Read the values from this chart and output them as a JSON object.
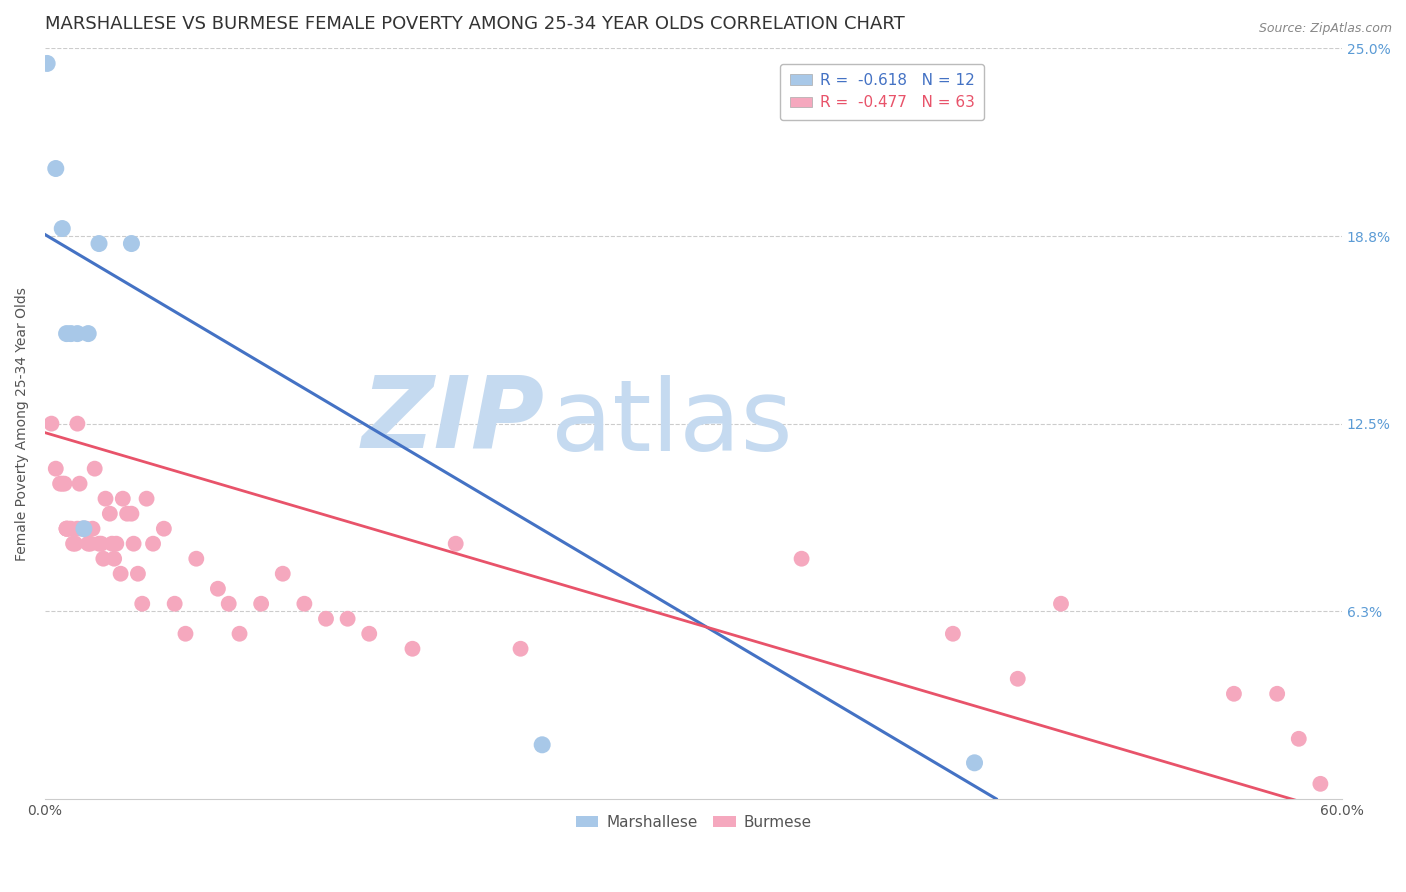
{
  "title": "MARSHALLESE VS BURMESE FEMALE POVERTY AMONG 25-34 YEAR OLDS CORRELATION CHART",
  "source_text": "Source: ZipAtlas.com",
  "ylabel": "Female Poverty Among 25-34 Year Olds",
  "xlim": [
    0.0,
    0.6
  ],
  "ylim": [
    0.0,
    0.25
  ],
  "ytick_values": [
    0.0,
    0.0625,
    0.125,
    0.1875,
    0.25
  ],
  "xtick_values": [
    0.0,
    0.1,
    0.2,
    0.3,
    0.4,
    0.5,
    0.6
  ],
  "xtick_labels": [
    "0.0%",
    "",
    "",
    "",
    "",
    "",
    "60.0%"
  ],
  "right_ytick_labels": [
    "6.3%",
    "12.5%",
    "18.8%",
    "25.0%"
  ],
  "right_ytick_values": [
    0.0625,
    0.125,
    0.1875,
    0.25
  ],
  "marshallese_x": [
    0.001,
    0.005,
    0.008,
    0.01,
    0.012,
    0.015,
    0.018,
    0.02,
    0.025,
    0.04,
    0.23,
    0.43
  ],
  "marshallese_y": [
    0.245,
    0.21,
    0.19,
    0.155,
    0.155,
    0.155,
    0.09,
    0.155,
    0.185,
    0.185,
    0.018,
    0.012
  ],
  "burmese_x": [
    0.003,
    0.005,
    0.007,
    0.008,
    0.009,
    0.01,
    0.01,
    0.01,
    0.011,
    0.012,
    0.013,
    0.014,
    0.015,
    0.015,
    0.016,
    0.017,
    0.018,
    0.019,
    0.02,
    0.021,
    0.022,
    0.023,
    0.025,
    0.026,
    0.027,
    0.028,
    0.03,
    0.031,
    0.032,
    0.033,
    0.035,
    0.036,
    0.038,
    0.04,
    0.041,
    0.043,
    0.045,
    0.047,
    0.05,
    0.055,
    0.06,
    0.065,
    0.07,
    0.08,
    0.085,
    0.09,
    0.1,
    0.11,
    0.12,
    0.13,
    0.14,
    0.15,
    0.17,
    0.19,
    0.22,
    0.35,
    0.42,
    0.45,
    0.47,
    0.55,
    0.57,
    0.58,
    0.59
  ],
  "burmese_y": [
    0.125,
    0.11,
    0.105,
    0.105,
    0.105,
    0.09,
    0.09,
    0.09,
    0.09,
    0.09,
    0.085,
    0.085,
    0.09,
    0.125,
    0.105,
    0.09,
    0.09,
    0.09,
    0.085,
    0.085,
    0.09,
    0.11,
    0.085,
    0.085,
    0.08,
    0.1,
    0.095,
    0.085,
    0.08,
    0.085,
    0.075,
    0.1,
    0.095,
    0.095,
    0.085,
    0.075,
    0.065,
    0.1,
    0.085,
    0.09,
    0.065,
    0.055,
    0.08,
    0.07,
    0.065,
    0.055,
    0.065,
    0.075,
    0.065,
    0.06,
    0.06,
    0.055,
    0.05,
    0.085,
    0.05,
    0.08,
    0.055,
    0.04,
    0.065,
    0.035,
    0.035,
    0.02,
    0.005
  ],
  "marshallese_color": "#a8c8e8",
  "burmese_color": "#f5a8be",
  "marshallese_line_color": "#4472C4",
  "burmese_line_color": "#E8536A",
  "marshallese_R": -0.618,
  "marshallese_N": 12,
  "burmese_R": -0.477,
  "burmese_N": 63,
  "legend_labels": [
    "Marshallese",
    "Burmese"
  ],
  "watermark_zip_color": "#c5daf0",
  "watermark_atlas_color": "#c5daf0",
  "grid_color": "#cccccc",
  "background_color": "#ffffff",
  "title_fontsize": 13,
  "axis_label_fontsize": 10,
  "tick_fontsize": 10,
  "legend_fontsize": 11,
  "right_axis_color": "#5b9bd5",
  "blue_line_x0": 0.0,
  "blue_line_y0": 0.188,
  "blue_line_x1": 0.44,
  "blue_line_y1": 0.0,
  "pink_line_x0": 0.0,
  "pink_line_y0": 0.122,
  "pink_line_x1": 0.6,
  "pink_line_y1": -0.005
}
